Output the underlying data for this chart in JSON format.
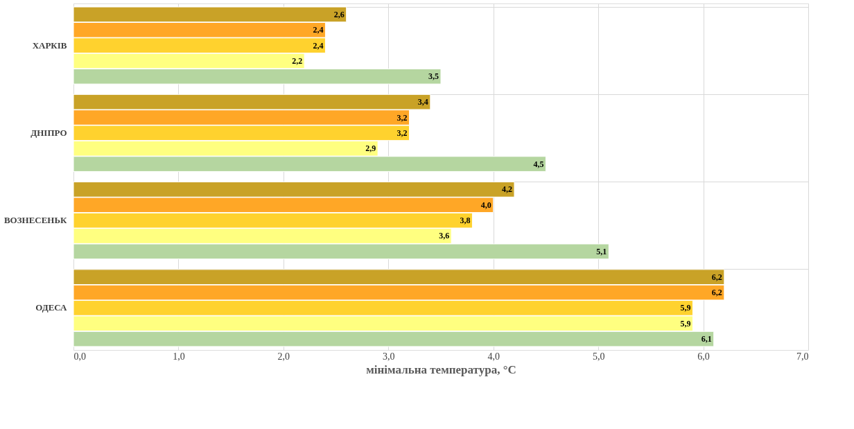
{
  "chart_data": {
    "type": "bar",
    "orientation": "horizontal",
    "xlabel": "мінімальна температура, °C",
    "categories": [
      "ХАРКІВ",
      "ДНІПРО",
      "ВОЗНЕСЕНЬК",
      "ОДЕСА"
    ],
    "series": [
      {
        "color": "#c9a227",
        "values": [
          2.6,
          3.4,
          4.2,
          6.2
        ],
        "value_labels": [
          "2,6",
          "3,4",
          "4,2",
          "6,2"
        ]
      },
      {
        "color": "#ffa726",
        "values": [
          2.4,
          3.2,
          4.0,
          6.2
        ],
        "value_labels": [
          "2,4",
          "3,2",
          "4,0",
          "6,2"
        ]
      },
      {
        "color": "#ffd22e",
        "values": [
          2.4,
          3.2,
          3.8,
          5.9
        ],
        "value_labels": [
          "2,4",
          "3,2",
          "3,8",
          "5,9"
        ]
      },
      {
        "color": "#ffff80",
        "values": [
          2.2,
          2.9,
          3.6,
          5.9
        ],
        "value_labels": [
          "2,2",
          "2,9",
          "3,6",
          "5,9"
        ]
      },
      {
        "color": "#b5d6a0",
        "values": [
          3.5,
          4.5,
          5.1,
          6.1
        ],
        "value_labels": [
          "3,5",
          "4,5",
          "5,1",
          "6,1"
        ]
      }
    ],
    "xlim": [
      0,
      7
    ],
    "xticks": [
      {
        "value": 0,
        "label": "0,0"
      },
      {
        "value": 1,
        "label": "1,0"
      },
      {
        "value": 2,
        "label": "2,0"
      },
      {
        "value": 3,
        "label": "3,0"
      },
      {
        "value": 4,
        "label": "4,0"
      },
      {
        "value": 5,
        "label": "5,0"
      },
      {
        "value": 6,
        "label": "6,0"
      },
      {
        "value": 7,
        "label": "7,0"
      }
    ],
    "grid": true,
    "legend": false
  }
}
